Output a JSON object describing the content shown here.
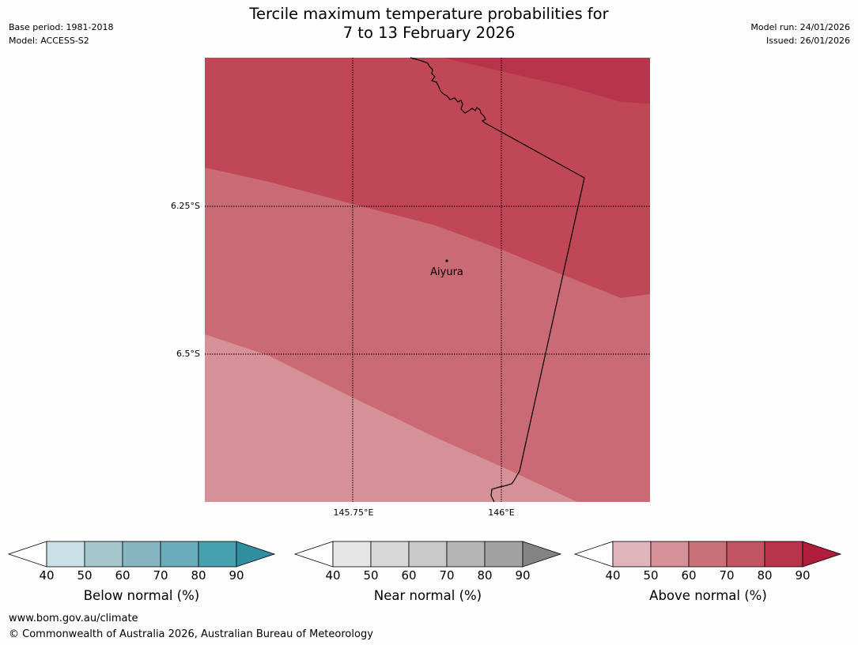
{
  "title": {
    "line1": "Tercile maximum temperature probabilities for",
    "line2": "7 to 13 February 2026"
  },
  "meta_left": {
    "base_period": "Base period: 1981-2018",
    "model": "Model: ACCESS-S2"
  },
  "meta_right": {
    "model_run": "Model run: 24/01/2026",
    "issued": "Issued: 26/01/2026"
  },
  "map": {
    "lat_labels": [
      "6.25°S",
      "6.5°S"
    ],
    "lon_labels": [
      "145.75°E",
      "146°E"
    ],
    "place_name": "Aiyura",
    "zone_colors": [
      "#d69098",
      "#ca6a74",
      "#c04756",
      "#b8344a"
    ]
  },
  "colorbars": [
    {
      "title": "Below normal (%)",
      "ticks": [
        "40",
        "50",
        "60",
        "70",
        "80",
        "90"
      ],
      "colors": [
        "#c9e1e6",
        "#a6c6cd",
        "#88b5c2",
        "#6aacb9",
        "#46a0ae"
      ],
      "arrow_color": "#2f8fa0"
    },
    {
      "title": "Near normal (%)",
      "ticks": [
        "40",
        "50",
        "60",
        "70",
        "80",
        "90"
      ],
      "colors": [
        "#e6e6e6",
        "#d8d8d8",
        "#c9c9c9",
        "#b5b5b5",
        "#a2a2a2"
      ],
      "arrow_color": "#838383"
    },
    {
      "title": "Above normal (%)",
      "ticks": [
        "40",
        "50",
        "60",
        "70",
        "80",
        "90"
      ],
      "colors": [
        "#e1b5bc",
        "#d69098",
        "#cb7179",
        "#c15563",
        "#b8344a"
      ],
      "arrow_color": "#b01e3c"
    }
  ],
  "footer": {
    "url": "www.bom.gov.au/climate",
    "copyright": "© Commonwealth of Australia 2026, Australian Bureau of Meteorology"
  }
}
